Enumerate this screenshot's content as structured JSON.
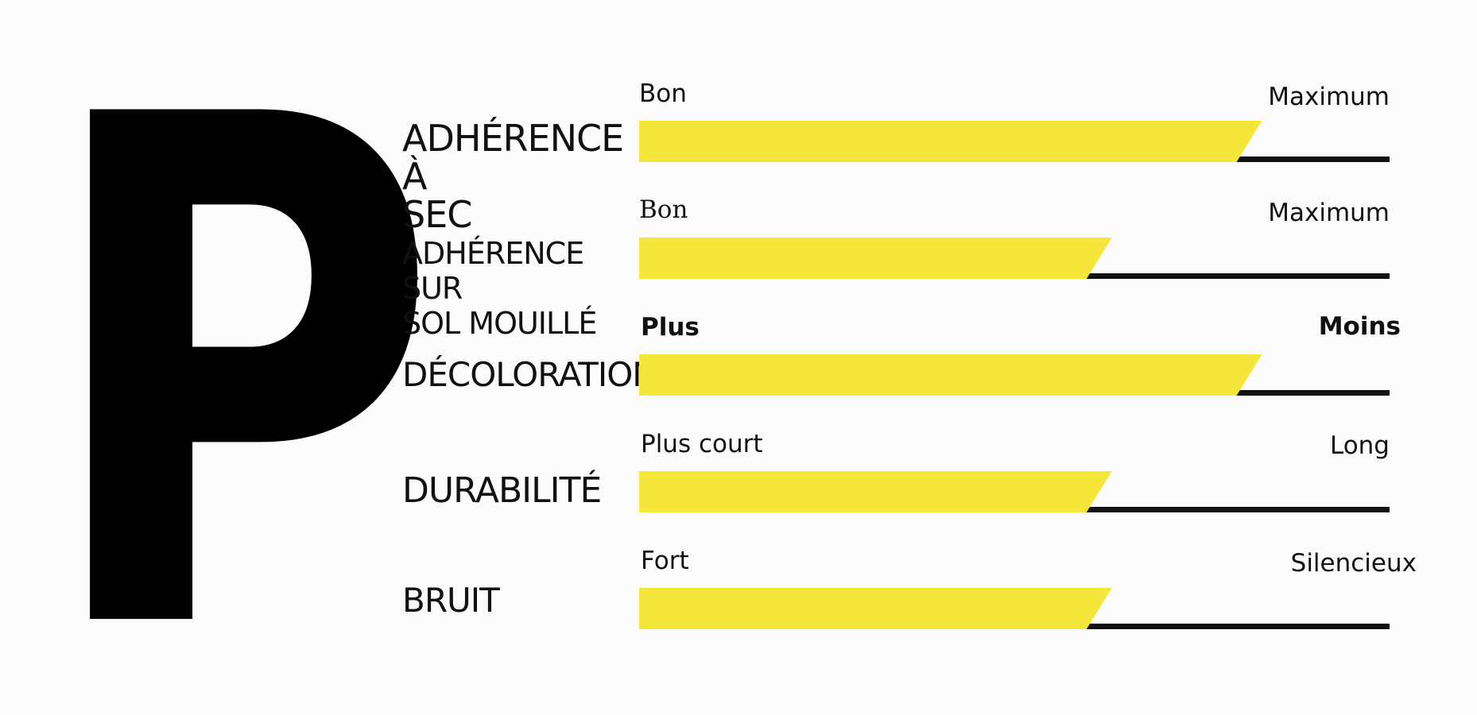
{
  "brand_letter": "P",
  "colors": {
    "bar_fill": "#f5e63a",
    "baseline": "#111111",
    "text": "#111111",
    "background": "#fbfbfb"
  },
  "chart_data": {
    "type": "bar",
    "orientation": "horizontal",
    "value_scale": "0-1 fraction of scale",
    "categories": [
      "ADHÉRENCE À\nSEC",
      "ADHÉRENCE SUR\nSOL MOUILLÉ",
      "DÉCOLORATION",
      "DURABILITÉ",
      "BRUIT"
    ],
    "values": [
      0.83,
      0.63,
      0.83,
      0.63,
      0.63
    ],
    "scale_labels": [
      {
        "low": "Bon",
        "high": "Maximum"
      },
      {
        "low": "Bon",
        "high": "Maximum"
      },
      {
        "low": "Plus",
        "high": "Moins"
      },
      {
        "low": "Plus court",
        "high": "Long"
      },
      {
        "low": "Fort",
        "high": "Silencieux"
      }
    ],
    "xlim": [
      0,
      1
    ],
    "grid": false,
    "legend": "none"
  }
}
